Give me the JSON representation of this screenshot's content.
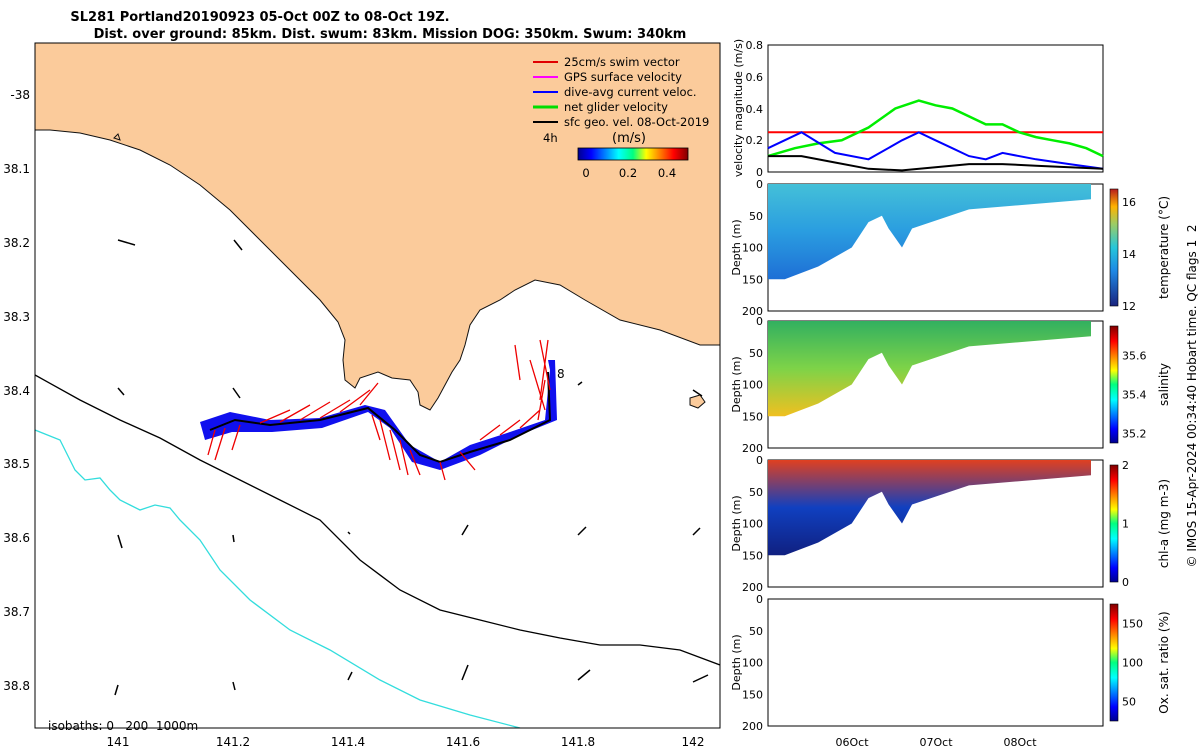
{
  "title_line1": "SL281 Portland20190923 05-Oct 00Z to 08-Oct 19Z.",
  "title_line2": "Dist. over ground: 85km. Dist. swum: 83km. Mission DOG: 350km. Swum: 340km",
  "map": {
    "x_ticks": [
      "141",
      "141.2",
      "141.4",
      "141.6",
      "141.8",
      "142"
    ],
    "y_ticks": [
      "-38",
      "38.1",
      "38.2",
      "38.3",
      "38.4",
      "38.5",
      "38.6",
      "38.7",
      "38.8"
    ],
    "legend": [
      {
        "label": "25cm/s swim vector",
        "color": "#e00000"
      },
      {
        "label": "GPS surface velocity",
        "color": "#ff00ff"
      },
      {
        "label": "dive-avg current veloc.",
        "color": "#0000ff"
      },
      {
        "label": "net glider velocity",
        "color": "#00dd00"
      },
      {
        "label": "sfc geo. vel. 08-Oct-2019",
        "color": "#000000"
      }
    ],
    "interval_label": "4h",
    "colorbar_title": "(m/s)",
    "colorbar_ticks": [
      "0",
      "0.2",
      "0.4"
    ],
    "annotation": "8",
    "isobath_label": "isobaths: 0   200  1000m"
  },
  "chart_data": [
    {
      "type": "line",
      "ylabel": "velocity magnitude (m/s)",
      "ylim": [
        0,
        0.8
      ],
      "y_ticks": [
        "0",
        "0.2",
        "0.4",
        "0.6",
        "0.8"
      ],
      "series": [
        {
          "name": "25cm/s swim vector",
          "color": "#ff0000",
          "x": [
            0,
            1
          ],
          "values": [
            0.25,
            0.25
          ]
        },
        {
          "name": "net glider velocity",
          "color": "#00ee00",
          "x": [
            0,
            0.08,
            0.15,
            0.22,
            0.3,
            0.38,
            0.45,
            0.5,
            0.55,
            0.6,
            0.65,
            0.7,
            0.75,
            0.8,
            0.85,
            0.9,
            0.95,
            1.0
          ],
          "values": [
            0.1,
            0.15,
            0.18,
            0.2,
            0.28,
            0.4,
            0.45,
            0.42,
            0.4,
            0.35,
            0.3,
            0.3,
            0.25,
            0.22,
            0.2,
            0.18,
            0.15,
            0.1
          ]
        },
        {
          "name": "dive-avg current veloc.",
          "color": "#0000ff",
          "x": [
            0,
            0.1,
            0.2,
            0.3,
            0.4,
            0.45,
            0.5,
            0.55,
            0.6,
            0.65,
            0.7,
            0.8,
            0.9,
            1.0
          ],
          "values": [
            0.15,
            0.25,
            0.12,
            0.08,
            0.2,
            0.25,
            0.2,
            0.15,
            0.1,
            0.08,
            0.12,
            0.08,
            0.05,
            0.02
          ]
        },
        {
          "name": "sfc geo. vel.",
          "color": "#000000",
          "x": [
            0,
            0.1,
            0.2,
            0.3,
            0.4,
            0.5,
            0.6,
            0.7,
            0.8,
            0.9,
            1.0
          ],
          "values": [
            0.1,
            0.1,
            0.06,
            0.02,
            0.01,
            0.03,
            0.05,
            0.05,
            0.04,
            0.03,
            0.02
          ]
        }
      ]
    },
    {
      "type": "heatmap",
      "ylabel": "Depth (m)",
      "y_ticks": [
        "0",
        "50",
        "100",
        "150",
        "200"
      ],
      "colorbar_label": "temperature (°C)",
      "colorbar_ticks": [
        "12",
        "14",
        "16"
      ],
      "range": [
        12,
        16.5
      ]
    },
    {
      "type": "heatmap",
      "ylabel": "Depth (m)",
      "y_ticks": [
        "0",
        "50",
        "100",
        "150",
        "200"
      ],
      "colorbar_label": "salinity",
      "colorbar_ticks": [
        "35.2",
        "35.4",
        "35.6"
      ],
      "range": [
        35.15,
        35.75
      ]
    },
    {
      "type": "heatmap",
      "ylabel": "Depth (m)",
      "y_ticks": [
        "0",
        "50",
        "100",
        "150",
        "200"
      ],
      "colorbar_label": "chl-a (mg m-3)",
      "colorbar_ticks": [
        "0",
        "1",
        "2"
      ],
      "range": [
        0,
        2
      ]
    },
    {
      "type": "heatmap",
      "ylabel": "Depth (m)",
      "y_ticks": [
        "0",
        "50",
        "100",
        "150",
        "200"
      ],
      "colorbar_label": "Ox. sat. ratio (%)",
      "colorbar_ticks": [
        "50",
        "100",
        "150"
      ],
      "range": [
        25,
        175
      ]
    }
  ],
  "time_axis": [
    "06Oct",
    "07Oct",
    "08Oct"
  ],
  "footer": "© IMOS 15-Apr-2024 00:34:40 Hobart time. QC flags 1  2"
}
